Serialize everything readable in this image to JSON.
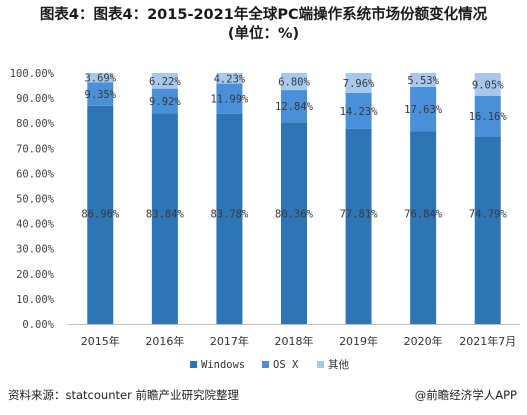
{
  "chart_data": {
    "type": "bar",
    "stacked": true,
    "title": "图表4：图表4：2015-2021年全球PC端操作系统市场份额变化情况",
    "subtitle": "(单位：%)",
    "categories": [
      "2015年",
      "2016年",
      "2017年",
      "2018年",
      "2019年",
      "2020年",
      "2021年7月"
    ],
    "series": [
      {
        "name": "Windows",
        "color": "#2e75b6",
        "values": [
          86.96,
          83.84,
          83.78,
          80.36,
          77.81,
          76.84,
          74.79
        ]
      },
      {
        "name": "OS X",
        "color": "#4a90d9",
        "values": [
          9.35,
          9.92,
          11.99,
          12.84,
          14.23,
          17.63,
          16.16
        ]
      },
      {
        "name": "其他",
        "color": "#a6c8ea",
        "values": [
          3.69,
          6.22,
          4.23,
          6.8,
          7.96,
          5.53,
          9.05
        ]
      }
    ],
    "ylim": [
      0,
      100
    ],
    "yticks": [
      "0.00%",
      "10.00%",
      "20.00%",
      "30.00%",
      "40.00%",
      "50.00%",
      "60.00%",
      "70.00%",
      "80.00%",
      "90.00%",
      "100.00%"
    ],
    "data_labels": true,
    "legend_position": "bottom",
    "grid": false
  },
  "footer": {
    "source": "资料来源：statcounter 前瞻产业研究院整理",
    "credit": "@前瞻经济学人APP"
  }
}
